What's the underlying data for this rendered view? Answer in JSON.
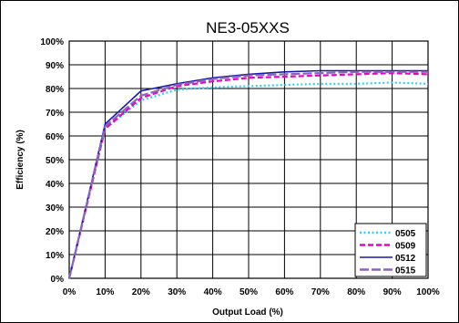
{
  "chart_data": {
    "type": "line",
    "title": "NE3-05XXS",
    "xlabel": "Output Load (%)",
    "ylabel": "Efficiency (%)",
    "xlim": [
      0,
      100
    ],
    "ylim": [
      0,
      100
    ],
    "x_tick_labels": [
      "0%",
      "10%",
      "20%",
      "30%",
      "40%",
      "50%",
      "60%",
      "70%",
      "80%",
      "90%",
      "100%"
    ],
    "y_tick_labels": [
      "0%",
      "10%",
      "20%",
      "30%",
      "40%",
      "50%",
      "60%",
      "70%",
      "80%",
      "90%",
      "100%"
    ],
    "grid": true,
    "legend_position": "bottom-right",
    "x": [
      0,
      10,
      20,
      30,
      40,
      50,
      60,
      70,
      80,
      90,
      100
    ],
    "series": [
      {
        "name": "0505",
        "color": "#33ccff",
        "style": "dotted",
        "values": [
          0,
          63,
          75,
          79.5,
          80.5,
          81,
          81.5,
          82,
          82,
          82.5,
          82
        ]
      },
      {
        "name": "0509",
        "color": "#ee00cc",
        "style": "dashed",
        "values": [
          0,
          63,
          76,
          81,
          83,
          84.5,
          85,
          85.5,
          86,
          86.5,
          86
        ]
      },
      {
        "name": "0512",
        "color": "#1a1aaa",
        "style": "solid",
        "values": [
          0,
          65,
          79,
          82,
          84.5,
          86,
          87,
          87.5,
          87.5,
          87.5,
          87.5
        ]
      },
      {
        "name": "0515",
        "color": "#8866bb",
        "style": "longdash",
        "values": [
          0,
          64,
          77,
          81.5,
          84,
          85.5,
          86,
          86.5,
          87,
          87,
          87
        ]
      }
    ]
  }
}
